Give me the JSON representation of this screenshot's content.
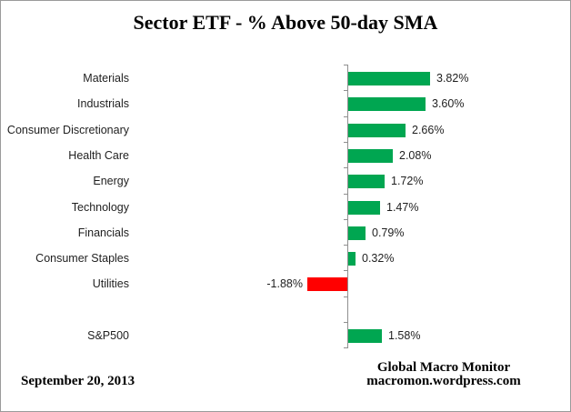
{
  "chart_data": {
    "type": "bar",
    "orientation": "horizontal",
    "title": "Sector ETF - % Above 50-day SMA",
    "categories": [
      "Materials",
      "Industrials",
      "Consumer Discretionary",
      "Health Care",
      "Energy",
      "Technology",
      "Financials",
      "Consumer Staples",
      "Utilities",
      "S&P500"
    ],
    "values": [
      3.82,
      3.6,
      2.66,
      2.08,
      1.72,
      1.47,
      0.79,
      0.32,
      -1.88,
      1.58
    ],
    "value_labels": [
      "3.82%",
      "3.60%",
      "2.66%",
      "2.08%",
      "1.72%",
      "1.47%",
      "0.79%",
      "0.32%",
      "-1.88%",
      "1.58%"
    ],
    "rows": [
      {
        "label": "Materials",
        "value": 3.82,
        "display": "3.82%"
      },
      {
        "label": "Industrials",
        "value": 3.6,
        "display": "3.60%"
      },
      {
        "label": "Consumer Discretionary",
        "value": 2.66,
        "display": "2.66%"
      },
      {
        "label": "Health Care",
        "value": 2.08,
        "display": "2.08%"
      },
      {
        "label": "Energy",
        "value": 1.72,
        "display": "1.72%"
      },
      {
        "label": "Technology",
        "value": 1.47,
        "display": "1.47%"
      },
      {
        "label": "Financials",
        "value": 0.79,
        "display": "0.79%"
      },
      {
        "label": "Consumer Staples",
        "value": 0.32,
        "display": "0.32%"
      },
      {
        "label": "Utilities",
        "value": -1.88,
        "display": "-1.88%"
      },
      {
        "label": "",
        "value": null,
        "display": ""
      },
      {
        "label": "S&P500",
        "value": 1.58,
        "display": "1.58%"
      }
    ],
    "colors": {
      "positive_bar": "#00A651",
      "negative_bar": "#FF0000",
      "axis": "#8F8F8F"
    },
    "xlabel": "",
    "ylabel": "",
    "gridlines": false,
    "legend": false,
    "data_labels": true
  },
  "footer": {
    "date": "September 20, 2013",
    "source_line1": "Global Macro Monitor",
    "source_line2": "macromon.wordpress.com"
  }
}
